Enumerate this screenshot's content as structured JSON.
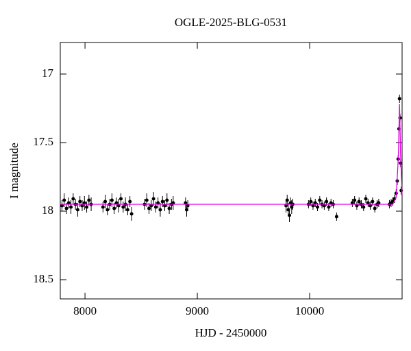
{
  "chart_data": {
    "type": "scatter",
    "title": "OGLE-2025-BLG-0531",
    "x_label": "HJD - 2450000",
    "y_label": "I magnitude",
    "xlim": [
      7780,
      10823
    ],
    "ylim": [
      18.64,
      16.77
    ],
    "xticks": [
      8000,
      9000,
      10000
    ],
    "yticks": [
      17,
      17.5,
      18,
      18.5
    ],
    "y_inverted": true,
    "series": [
      {
        "color": "#000000",
        "x": [
          7795,
          7815,
          7835,
          7855,
          7875,
          7895,
          7915,
          7935,
          7955,
          7975,
          7995,
          8015,
          8035,
          8055,
          8160,
          8180,
          8200,
          8220,
          8240,
          8260,
          8280,
          8300,
          8320,
          8340,
          8360,
          8380,
          8400,
          8415,
          8530,
          8550,
          8570,
          8590,
          8610,
          8630,
          8650,
          8670,
          8690,
          8710,
          8730,
          8750,
          8770,
          8785,
          8895,
          8905,
          8915,
          9790,
          9800,
          9810,
          9820,
          9830,
          9840,
          9850,
          9990,
          10010,
          10030,
          10050,
          10070,
          10090,
          10110,
          10130,
          10150,
          10170,
          10190,
          10210,
          10240,
          10380,
          10400,
          10420,
          10440,
          10460,
          10480,
          10500,
          10520,
          10540,
          10560,
          10580,
          10600,
          10615,
          10710,
          10725,
          10740,
          10755,
          10770,
          10780,
          10788,
          10795,
          10800,
          10805,
          10810,
          10815
        ],
        "values": [
          17.96,
          17.92,
          17.98,
          17.94,
          17.97,
          17.91,
          17.95,
          17.99,
          17.93,
          17.96,
          17.94,
          17.97,
          17.92,
          17.95,
          17.97,
          17.93,
          17.99,
          17.95,
          17.92,
          17.98,
          17.94,
          17.96,
          17.91,
          17.97,
          17.95,
          17.99,
          17.93,
          18.02,
          17.95,
          17.92,
          17.98,
          17.96,
          17.91,
          17.97,
          17.94,
          17.99,
          17.93,
          17.96,
          17.92,
          17.98,
          17.95,
          17.94,
          17.94,
          17.99,
          17.96,
          17.96,
          17.92,
          17.99,
          18.03,
          17.94,
          17.97,
          17.95,
          17.95,
          17.93,
          17.96,
          17.94,
          17.97,
          17.92,
          17.95,
          17.96,
          17.93,
          17.97,
          17.94,
          17.95,
          18.04,
          17.94,
          17.92,
          17.96,
          17.93,
          17.95,
          17.97,
          17.91,
          17.94,
          17.96,
          17.93,
          17.98,
          17.95,
          17.94,
          17.95,
          17.94,
          17.93,
          17.91,
          17.87,
          17.78,
          17.62,
          17.4,
          17.18,
          17.32,
          17.65,
          17.85
        ],
        "errors": [
          0.04,
          0.05,
          0.04,
          0.04,
          0.05,
          0.04,
          0.04,
          0.05,
          0.04,
          0.04,
          0.05,
          0.04,
          0.04,
          0.05,
          0.04,
          0.05,
          0.04,
          0.04,
          0.05,
          0.04,
          0.04,
          0.05,
          0.04,
          0.04,
          0.05,
          0.04,
          0.04,
          0.05,
          0.04,
          0.05,
          0.04,
          0.04,
          0.05,
          0.04,
          0.04,
          0.05,
          0.04,
          0.04,
          0.05,
          0.04,
          0.04,
          0.05,
          0.04,
          0.05,
          0.04,
          0.05,
          0.04,
          0.05,
          0.05,
          0.04,
          0.05,
          0.04,
          0.03,
          0.03,
          0.03,
          0.03,
          0.03,
          0.03,
          0.03,
          0.03,
          0.03,
          0.03,
          0.03,
          0.03,
          0.03,
          0.03,
          0.03,
          0.03,
          0.03,
          0.03,
          0.03,
          0.03,
          0.03,
          0.03,
          0.03,
          0.03,
          0.03,
          0.03,
          0.03,
          0.03,
          0.03,
          0.03,
          0.03,
          0.03,
          0.03,
          0.03,
          0.03,
          0.03,
          0.03,
          0.03
        ]
      }
    ],
    "model": {
      "color": "#e000e0",
      "x": [
        7780,
        10740,
        10770,
        10790,
        10800,
        10810,
        10823
      ],
      "values": [
        17.95,
        17.95,
        17.9,
        17.6,
        17.22,
        17.6,
        17.88
      ]
    }
  }
}
